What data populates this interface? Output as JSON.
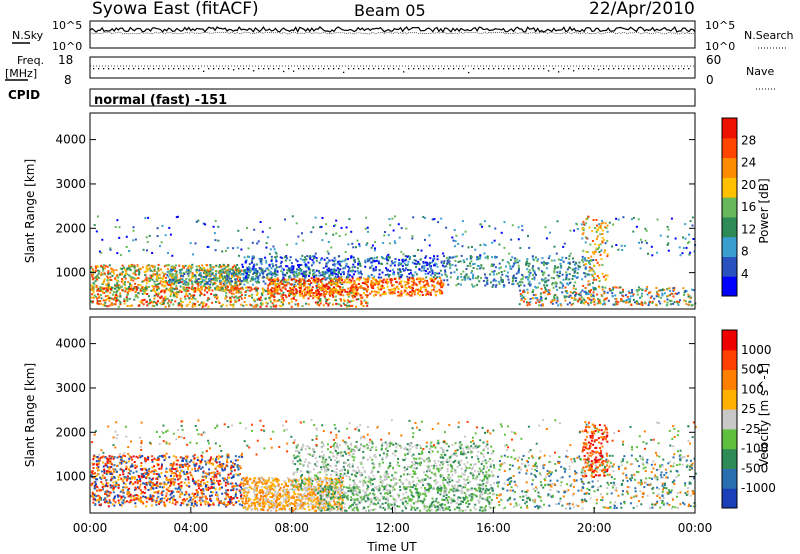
{
  "header": {
    "station": "Syowa East (fitACF)",
    "beam": "Beam 05",
    "date": "22/Apr/2010"
  },
  "summary_panel": {
    "nsky_label": "N.Sky",
    "nsky_ticks": [
      "10^5",
      "10^0"
    ],
    "nsearch_label": "N.Search",
    "freq_label": "Freq.",
    "freq_unit": "[MHz]",
    "freq_ticks": [
      "18",
      "8"
    ],
    "nave_label": "Nave",
    "nave_ticks": [
      "60",
      "0"
    ],
    "cpid_label": "CPID",
    "cpid_value": "normal (fast) -151"
  },
  "chart_data": [
    {
      "type": "heatmap",
      "name": "power",
      "ylabel": "Slant Range [km]",
      "ylim": [
        180,
        4600
      ],
      "yticks": [
        1000,
        2000,
        3000,
        4000
      ],
      "xlim": [
        0,
        24
      ],
      "colorbar": {
        "label": "Power [dB]",
        "ticks": [
          "28",
          "24",
          "20",
          "16",
          "12",
          "8",
          "4"
        ],
        "colors": [
          "#0000ff",
          "#2a52be",
          "#3a9fcf",
          "#2e8b57",
          "#66b85a",
          "#ffc000",
          "#ff8c00",
          "#ff4500",
          "#ee1100"
        ]
      }
    },
    {
      "type": "heatmap",
      "name": "velocity",
      "ylabel": "Slant Range [km]",
      "ylim": [
        180,
        4600
      ],
      "yticks": [
        1000,
        2000,
        3000,
        4000
      ],
      "xlim": [
        0,
        24
      ],
      "xlabel": "Time UT",
      "xticks": [
        "00:00",
        "04:00",
        "08:00",
        "12:00",
        "16:00",
        "20:00",
        "00:00"
      ],
      "colorbar": {
        "label": "Velocity [m s^-1]",
        "ticks": [
          "1000",
          "500",
          "100",
          "25",
          "-25",
          "-100",
          "-500",
          "-1000"
        ],
        "colors": [
          "#1a3fb8",
          "#2a70b0",
          "#2e8b57",
          "#5fc03f",
          "#c8c8c8",
          "#ffb000",
          "#ff8000",
          "#ff4000",
          "#ee0000"
        ]
      }
    }
  ]
}
